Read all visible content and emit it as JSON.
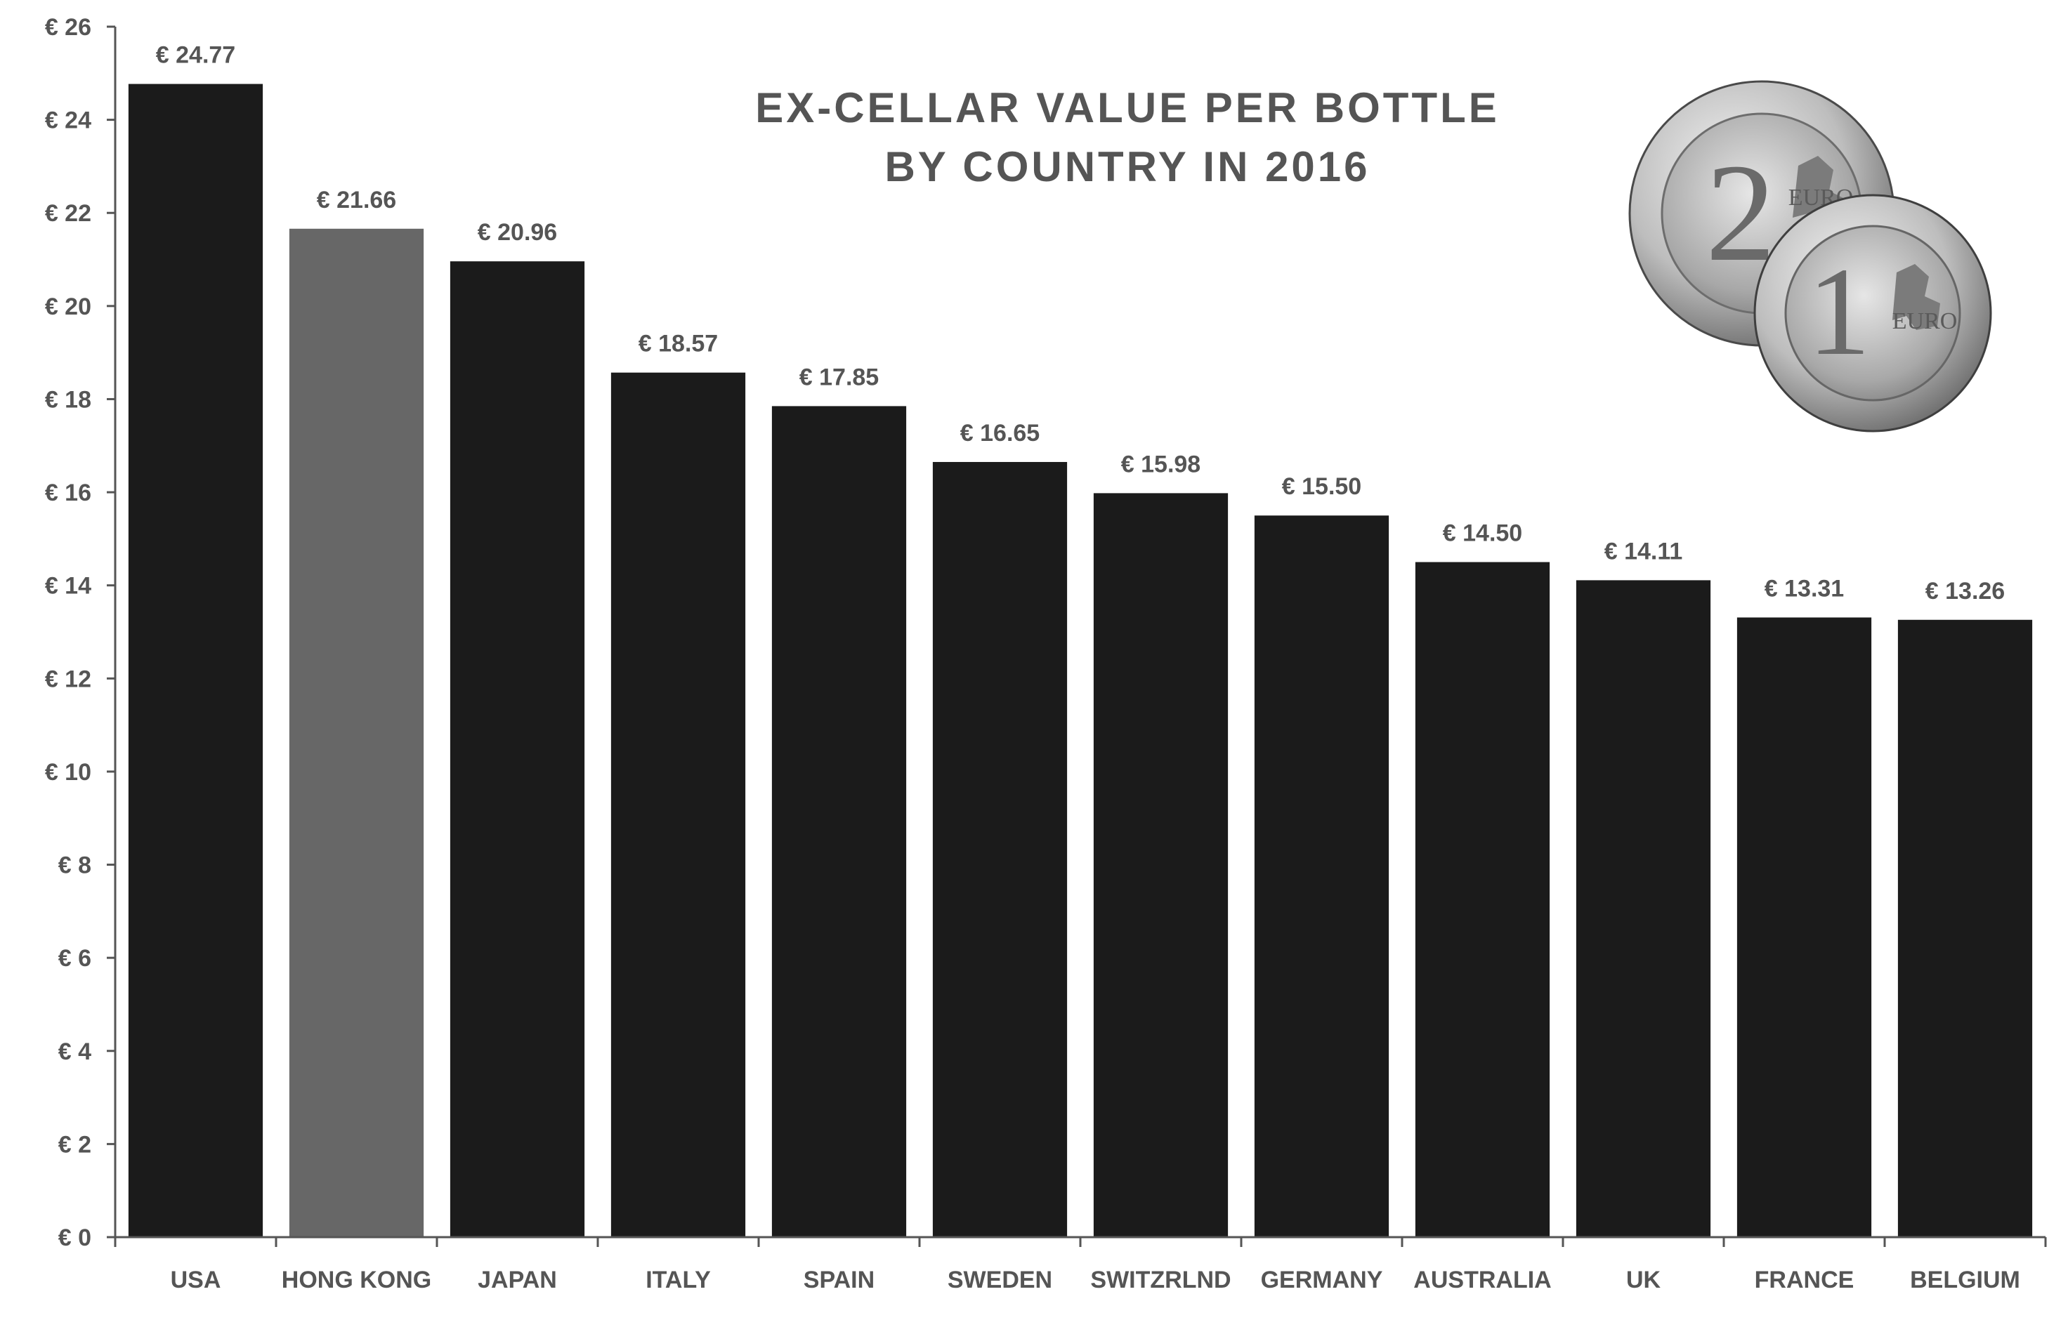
{
  "chart_data": {
    "type": "bar",
    "title_lines": [
      "EX-CELLAR VALUE PER BOTTLE",
      "BY COUNTRY IN 2016"
    ],
    "xlabel": "",
    "ylabel": "",
    "categories": [
      "USA",
      "HONG KONG",
      "JAPAN",
      "ITALY",
      "SPAIN",
      "SWEDEN",
      "SWITZRLND",
      "GERMANY",
      "AUSTRALIA",
      "UK",
      "FRANCE",
      "BELGIUM"
    ],
    "values": [
      24.77,
      21.66,
      20.96,
      18.57,
      17.85,
      16.65,
      15.98,
      15.5,
      14.5,
      14.11,
      13.31,
      13.26
    ],
    "data_labels": [
      "€ 24.77",
      "€ 21.66",
      "€ 20.96",
      "€ 18.57",
      "€ 17.85",
      "€ 16.65",
      "€ 15.98",
      "€ 15.50",
      "€ 14.50",
      "€ 14.11",
      "€ 13.31",
      "€ 13.26"
    ],
    "ylim": [
      0,
      26
    ],
    "yticks": [
      0,
      2,
      4,
      6,
      8,
      10,
      12,
      14,
      16,
      18,
      20,
      22,
      24,
      26
    ],
    "ytick_labels": [
      "€ 0",
      "€ 2",
      "€ 4",
      "€ 6",
      "€ 8",
      "€ 10",
      "€ 12",
      "€ 14",
      "€ 16",
      "€ 18",
      "€ 20",
      "€ 22",
      "€ 24",
      "€ 26"
    ],
    "grid": false,
    "legend": "none",
    "colors": {
      "default_bar": "#1b1b1b",
      "highlight_bar": "#676767",
      "axis": "#555555",
      "text": "#555555"
    },
    "highlight_category": "HONG KONG",
    "decoration": {
      "coins": [
        "2 EURO",
        "1 EURO"
      ]
    }
  }
}
